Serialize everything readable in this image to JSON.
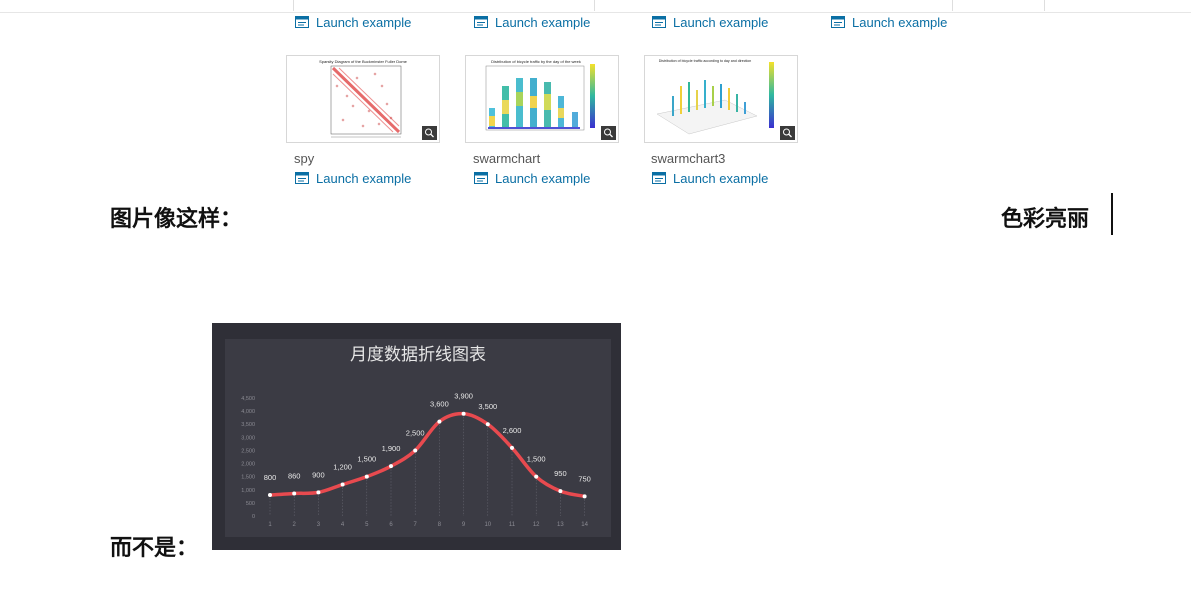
{
  "gallery": {
    "launch_label": "Launch example",
    "items": [
      {
        "name": "spy",
        "thumb_title": "Sparsity Diagram of the Buckminster Fuller Dome"
      },
      {
        "name": "swarmchart",
        "thumb_title": "Distribution of bicycle traffic by the day of the week"
      },
      {
        "name": "swarmchart3",
        "thumb_title": "Distribution of bicycle traffic according to day and direction"
      }
    ]
  },
  "text": {
    "like_this": "图片像这样：",
    "bright_colors": "色彩亮丽",
    "not_like": "而不是："
  },
  "chart_data": {
    "type": "line",
    "title": "月度数据折线图表",
    "x": [
      "1",
      "2",
      "3",
      "4",
      "5",
      "6",
      "7",
      "8",
      "9",
      "10",
      "11",
      "12",
      "13",
      "14"
    ],
    "values": [
      800,
      860,
      900,
      1200,
      1500,
      1900,
      2500,
      3600,
      3900,
      3500,
      2600,
      1500,
      950,
      750
    ],
    "data_labels": [
      "800",
      "860",
      "900",
      "1,200",
      "1,500",
      "1,900",
      "2,500",
      "3,600",
      "3,900",
      "3,500",
      "2,600",
      "1,500",
      "950",
      "750"
    ],
    "y_ticks": [
      "0",
      "500",
      "1,000",
      "1,500",
      "2,000",
      "2,500",
      "3,000",
      "3,500",
      "4,000",
      "4,500"
    ],
    "ylim": [
      0,
      4500
    ],
    "smooth": true,
    "colors": {
      "line": "#e84a4f",
      "background": "#2f2f37",
      "panel": "#3b3b44",
      "title": "#e6e6e6",
      "label": "#e8e8e8",
      "tick": "#8b8b93"
    }
  }
}
